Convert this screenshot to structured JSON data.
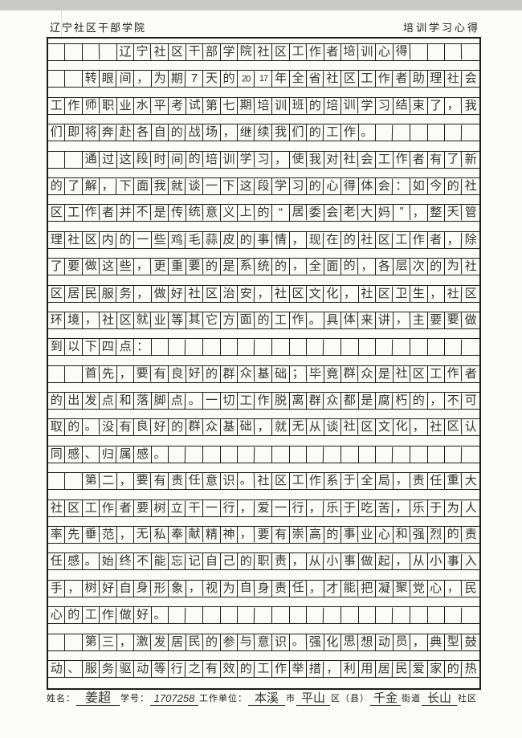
{
  "header": {
    "left_title": "辽宁社区干部学院",
    "right_title": "培训学习心得"
  },
  "grid": {
    "columns": 25,
    "rows": [
      [
        "",
        "",
        "",
        "",
        "辽",
        "宁",
        "社",
        "区",
        "干",
        "部",
        "学",
        "院",
        "社",
        "区",
        "工",
        "作",
        "者",
        "培",
        "训",
        "心",
        "得",
        "",
        "",
        "",
        ""
      ],
      [
        "",
        "",
        "转",
        "眼",
        "间",
        "，",
        "为",
        "期",
        "7",
        "天",
        "的",
        "20",
        "17",
        "年",
        "全",
        "省",
        "社",
        "区",
        "工",
        "作",
        "者",
        "助",
        "理",
        "社",
        "会"
      ],
      [
        "工",
        "作",
        "师",
        "职",
        "业",
        "水",
        "平",
        "考",
        "试",
        "第",
        "七",
        "期",
        "培",
        "训",
        "班",
        "的",
        "培",
        "训",
        "学",
        "习",
        "结",
        "束",
        "了",
        "，",
        "我"
      ],
      [
        "们",
        "即",
        "将",
        "奔",
        "赴",
        "各",
        "自",
        "的",
        "战",
        "场",
        "，",
        "继",
        "续",
        "我",
        "们",
        "的",
        "工",
        "作",
        "。",
        "",
        "",
        "",
        "",
        "",
        ""
      ],
      [
        "",
        "",
        "通",
        "过",
        "这",
        "段",
        "时",
        "间",
        "的",
        "培",
        "训",
        "学",
        "习",
        "，",
        "使",
        "我",
        "对",
        "社",
        "会",
        "工",
        "作",
        "者",
        "有",
        "了",
        "新"
      ],
      [
        "的",
        "了",
        "解",
        "，",
        "下",
        "面",
        "我",
        "就",
        "谈",
        "一",
        "下",
        "这",
        "段",
        "学",
        "习",
        "的",
        "心",
        "得",
        "体",
        "会",
        "：",
        "如",
        "今",
        "的",
        "社"
      ],
      [
        "区",
        "工",
        "作",
        "者",
        "并",
        "不",
        "是",
        "传",
        "统",
        "意",
        "义",
        "上",
        "的",
        "“",
        "居",
        "委",
        "会",
        "老",
        "大",
        "妈",
        "”",
        "，",
        "整",
        "天",
        "管"
      ],
      [
        "理",
        "社",
        "区",
        "内",
        "的",
        "一",
        "些",
        "鸡",
        "毛",
        "蒜",
        "皮",
        "的",
        "事",
        "情",
        "，",
        "现",
        "在",
        "的",
        "社",
        "区",
        "工",
        "作",
        "者",
        "，",
        "除"
      ],
      [
        "了",
        "要",
        "做",
        "这",
        "些",
        "，",
        "更",
        "重",
        "要",
        "的",
        "是",
        "系",
        "统",
        "的",
        "，",
        "全",
        "面",
        "的",
        "，",
        "各",
        "层",
        "次",
        "的",
        "为",
        "社"
      ],
      [
        "区",
        "居",
        "民",
        "服",
        "务",
        "，",
        "做",
        "好",
        "社",
        "区",
        "治",
        "安",
        "，",
        "社",
        "区",
        "文",
        "化",
        "，",
        "社",
        "区",
        "卫",
        "生",
        "，",
        "社",
        "区"
      ],
      [
        "环",
        "境",
        "，",
        "社",
        "区",
        "就",
        "业",
        "等",
        "其",
        "它",
        "方",
        "面",
        "的",
        "工",
        "作",
        "。",
        "具",
        "体",
        "来",
        "讲",
        "，",
        "主",
        "要",
        "要",
        "做"
      ],
      [
        "到",
        "以",
        "下",
        "四",
        "点",
        "：",
        "",
        "",
        "",
        "",
        "",
        "",
        "",
        "",
        "",
        "",
        "",
        "",
        "",
        "",
        "",
        "",
        "",
        "",
        ""
      ],
      [
        "",
        "",
        "首",
        "先",
        "，",
        "要",
        "有",
        "良",
        "好",
        "的",
        "群",
        "众",
        "基",
        "础",
        "；",
        "毕",
        "竟",
        "群",
        "众",
        "是",
        "社",
        "区",
        "工",
        "作",
        "者"
      ],
      [
        "的",
        "出",
        "发",
        "点",
        "和",
        "落",
        "脚",
        "点",
        "。",
        "一",
        "切",
        "工",
        "作",
        "脱",
        "离",
        "群",
        "众",
        "都",
        "是",
        "腐",
        "朽",
        "的",
        "，",
        "不",
        "可"
      ],
      [
        "取",
        "的",
        "。",
        "没",
        "有",
        "良",
        "好",
        "的",
        "群",
        "众",
        "基",
        "础",
        "，",
        "就",
        "无",
        "从",
        "谈",
        "社",
        "区",
        "文",
        "化",
        "，",
        "社",
        "区",
        "认"
      ],
      [
        "同",
        "感",
        "、",
        "归",
        "属",
        "感",
        "。",
        "",
        "",
        "",
        "",
        "",
        "",
        "",
        "",
        "",
        "",
        "",
        "",
        "",
        "",
        "",
        "",
        "",
        ""
      ],
      [
        "",
        "",
        "第",
        "二",
        "，",
        "要",
        "有",
        "责",
        "任",
        "意",
        "识",
        "。",
        "社",
        "区",
        "工",
        "作",
        "系",
        "于",
        "全",
        "局",
        "，",
        "责",
        "任",
        "重",
        "大"
      ],
      [
        "社",
        "区",
        "工",
        "作",
        "者",
        "要",
        "树",
        "立",
        "干",
        "一",
        "行",
        "，",
        "爱",
        "一",
        "行",
        "，",
        "乐",
        "于",
        "吃",
        "苦",
        "，",
        "乐",
        "于",
        "为",
        "人"
      ],
      [
        "率",
        "先",
        "垂",
        "范",
        "，",
        "无",
        "私",
        "奉",
        "献",
        "精",
        "神",
        "，",
        "要",
        "有",
        "崇",
        "高",
        "的",
        "事",
        "业",
        "心",
        "和",
        "强",
        "烈",
        "的",
        "责"
      ],
      [
        "任",
        "感",
        "。",
        "始",
        "终",
        "不",
        "能",
        "忘",
        "记",
        "自",
        "己",
        "的",
        "职",
        "责",
        "，",
        "从",
        "小",
        "事",
        "做",
        "起",
        "，",
        "从",
        "小",
        "事",
        "入"
      ],
      [
        "手",
        "，",
        "树",
        "好",
        "自",
        "身",
        "形",
        "象",
        "，",
        "视",
        "为",
        "自",
        "身",
        "责",
        "任",
        "，",
        "才",
        "能",
        "把",
        "凝",
        "聚",
        "党",
        "心",
        "，",
        "民"
      ],
      [
        "心",
        "的",
        "工",
        "作",
        "做",
        "好",
        "。",
        "",
        "",
        "",
        "",
        "",
        "",
        "",
        "",
        "",
        "",
        "",
        "",
        "",
        "",
        "",
        "",
        "",
        ""
      ],
      [
        "",
        "",
        "第",
        "三",
        "，",
        "激",
        "发",
        "居",
        "民",
        "的",
        "参",
        "与",
        "意",
        "识",
        "。",
        "强",
        "化",
        "思",
        "想",
        "动",
        "员",
        "，",
        "典",
        "型",
        "鼓"
      ],
      [
        "动",
        "、",
        "服",
        "务",
        "驱",
        "动",
        "等",
        "行",
        "之",
        "有",
        "效",
        "的",
        "工",
        "作",
        "举",
        "措",
        "，",
        "利",
        "用",
        "居",
        "民",
        "爱",
        "家",
        "的",
        "热"
      ]
    ]
  },
  "footer": {
    "name_label": "姓名：",
    "name_value": "姜超",
    "student_id_label": "学号：",
    "student_id_value": "1707258",
    "work_unit_label": "工作单位：",
    "city_value": "本溪",
    "city_label": "市",
    "district_value": "平山",
    "district_label": "区（县）",
    "street_value": "千金",
    "street_label": "街道",
    "community_value": "长山",
    "community_label": "社区"
  },
  "colors": {
    "ink": "#333333",
    "grid_line": "#1c1c1c",
    "paper": "#fbfbf9",
    "scan_band": "#c9c9c9"
  }
}
